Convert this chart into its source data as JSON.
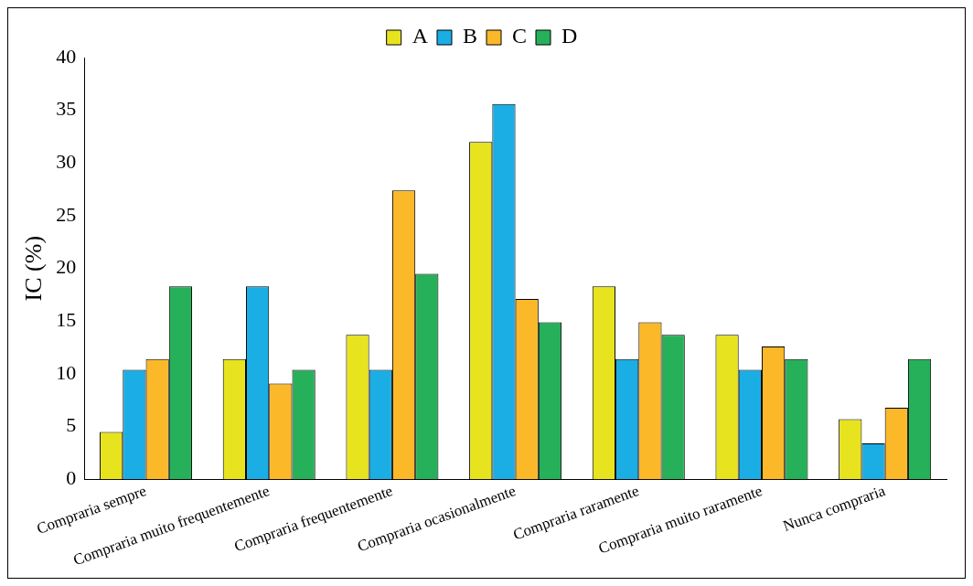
{
  "chart_data": {
    "type": "bar",
    "ylabel": "IC (%)",
    "categories": [
      "Compraria sempre",
      "Compraria muito frequentemente",
      "Compraria frequentemente",
      "Compraria ocasionalmente",
      "Compraria raramente",
      "Compraria muito raramente",
      "Nunca compraria"
    ],
    "series": [
      {
        "name": "A",
        "color": "#e8e31f",
        "values": [
          4.5,
          11.4,
          13.7,
          32.0,
          18.3,
          13.7,
          5.7
        ]
      },
      {
        "name": "B",
        "color": "#1aaee5",
        "values": [
          10.4,
          18.3,
          10.4,
          35.6,
          11.4,
          10.4,
          3.4
        ]
      },
      {
        "name": "C",
        "color": "#fbb829",
        "values": [
          11.4,
          9.1,
          27.4,
          17.1,
          14.9,
          12.6,
          6.8
        ]
      },
      {
        "name": "D",
        "color": "#27b05a",
        "values": [
          18.3,
          10.4,
          19.5,
          14.9,
          13.7,
          11.4,
          11.4
        ]
      }
    ],
    "ylim": [
      0,
      40
    ],
    "yticks": [
      0,
      5,
      10,
      15,
      20,
      25,
      30,
      35,
      40
    ],
    "grid": false,
    "legend": "top"
  }
}
